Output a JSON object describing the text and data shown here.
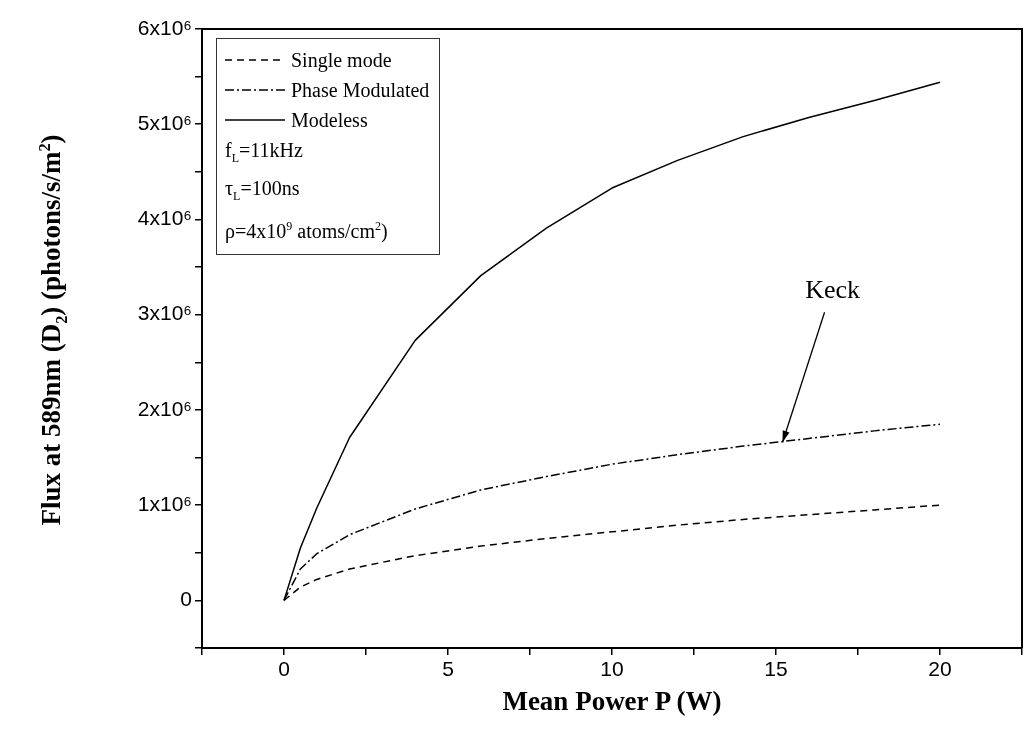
{
  "chart_data": {
    "type": "line",
    "xlabel": "Mean Power P (W)",
    "ylabel": "Flux at 589nm (D$_{2}$) (photons/s/m$^{2}$)",
    "x": [
      0,
      0.5,
      1,
      2,
      4,
      6,
      8,
      10,
      12,
      14,
      16,
      18,
      20
    ],
    "series": [
      {
        "name": "Single mode",
        "color": "#000000",
        "line_style": "dashed",
        "values": [
          0,
          140000,
          220000,
          330000,
          470000,
          570000,
          650000,
          720000,
          790000,
          850000,
          900000,
          950000,
          1000000
        ]
      },
      {
        "name": "Phase Modulated",
        "color": "#000000",
        "line_style": "dashdot",
        "values": [
          0,
          330000,
          490000,
          690000,
          960000,
          1160000,
          1300000,
          1430000,
          1530000,
          1620000,
          1700000,
          1780000,
          1850000
        ]
      },
      {
        "name": "Modeless",
        "color": "#000000",
        "line_style": "solid",
        "values": [
          0,
          550000,
          970000,
          1710000,
          2730000,
          3410000,
          3910000,
          4330000,
          4620000,
          4870000,
          5070000,
          5250000,
          5440000
        ]
      }
    ],
    "xlim": [
      -2.5,
      22.5
    ],
    "xticks": [
      {
        "value": -2.5,
        "label": null
      },
      0,
      {
        "value": 2.5,
        "label": null
      },
      5,
      {
        "value": 7.5,
        "label": null
      },
      10,
      {
        "value": 12.5,
        "label": null
      },
      15,
      {
        "value": 17.5,
        "label": null
      },
      20,
      {
        "value": 22.5,
        "label": null
      }
    ],
    "ylim": [
      -500000,
      6000000
    ],
    "yticks": [
      {
        "value": -500000,
        "label": null
      },
      0,
      {
        "value": 500000,
        "label": null
      },
      {
        "value": 1000000,
        "label": "1x10⁶"
      },
      {
        "value": 1500000,
        "label": null
      },
      {
        "value": 2000000,
        "label": "2x10⁶"
      },
      {
        "value": 2500000,
        "label": null
      },
      {
        "value": 3000000,
        "label": "3x10⁶"
      },
      {
        "value": 3500000,
        "label": null
      },
      {
        "value": 4000000,
        "label": "4x10⁶"
      },
      {
        "value": 4500000,
        "label": null
      },
      {
        "value": 5000000,
        "label": "5x10⁶"
      },
      {
        "value": 5500000,
        "label": null
      },
      {
        "value": 6000000,
        "label": "6x10⁶"
      }
    ],
    "grid": false,
    "legend": "top left",
    "marker": "none",
    "annotations": [
      "f$_{L}$=11kHz",
      "τ$_{L}$=100ns",
      "ρ=4x10$^{9}$ atoms/cm$^{2}$)",
      {
        "text": "Keck",
        "x": 15.2,
        "y": 1660000
      }
    ]
  }
}
